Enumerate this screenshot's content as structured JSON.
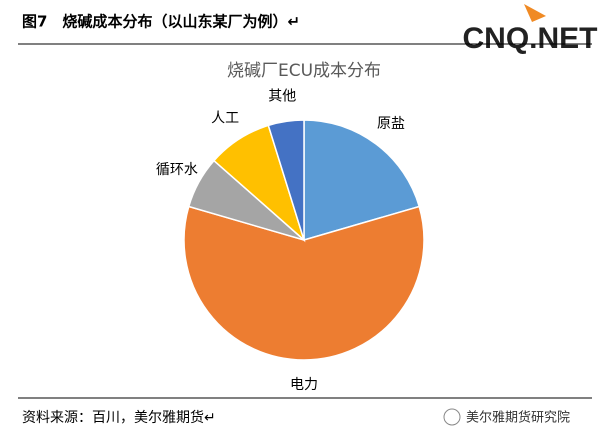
{
  "header": {
    "title": "图7　烧碱成本分布（以山东某厂为例）↵",
    "logo": "CNQ.NET"
  },
  "chart_data": {
    "type": "pie",
    "title": "烧碱厂ECU成本分布",
    "categories": [
      "原盐",
      "电力",
      "循环水",
      "人工",
      "其他"
    ],
    "values": [
      20.5,
      59,
      7,
      8.7,
      4.8
    ],
    "colors": [
      "#5b9bd5",
      "#ed7d31",
      "#a5a5a5",
      "#ffc000",
      "#4472c4"
    ]
  },
  "footer": {
    "source": "资料来源：百川，美尔雅期货↵",
    "brand": "美尔雅期货研究院"
  }
}
